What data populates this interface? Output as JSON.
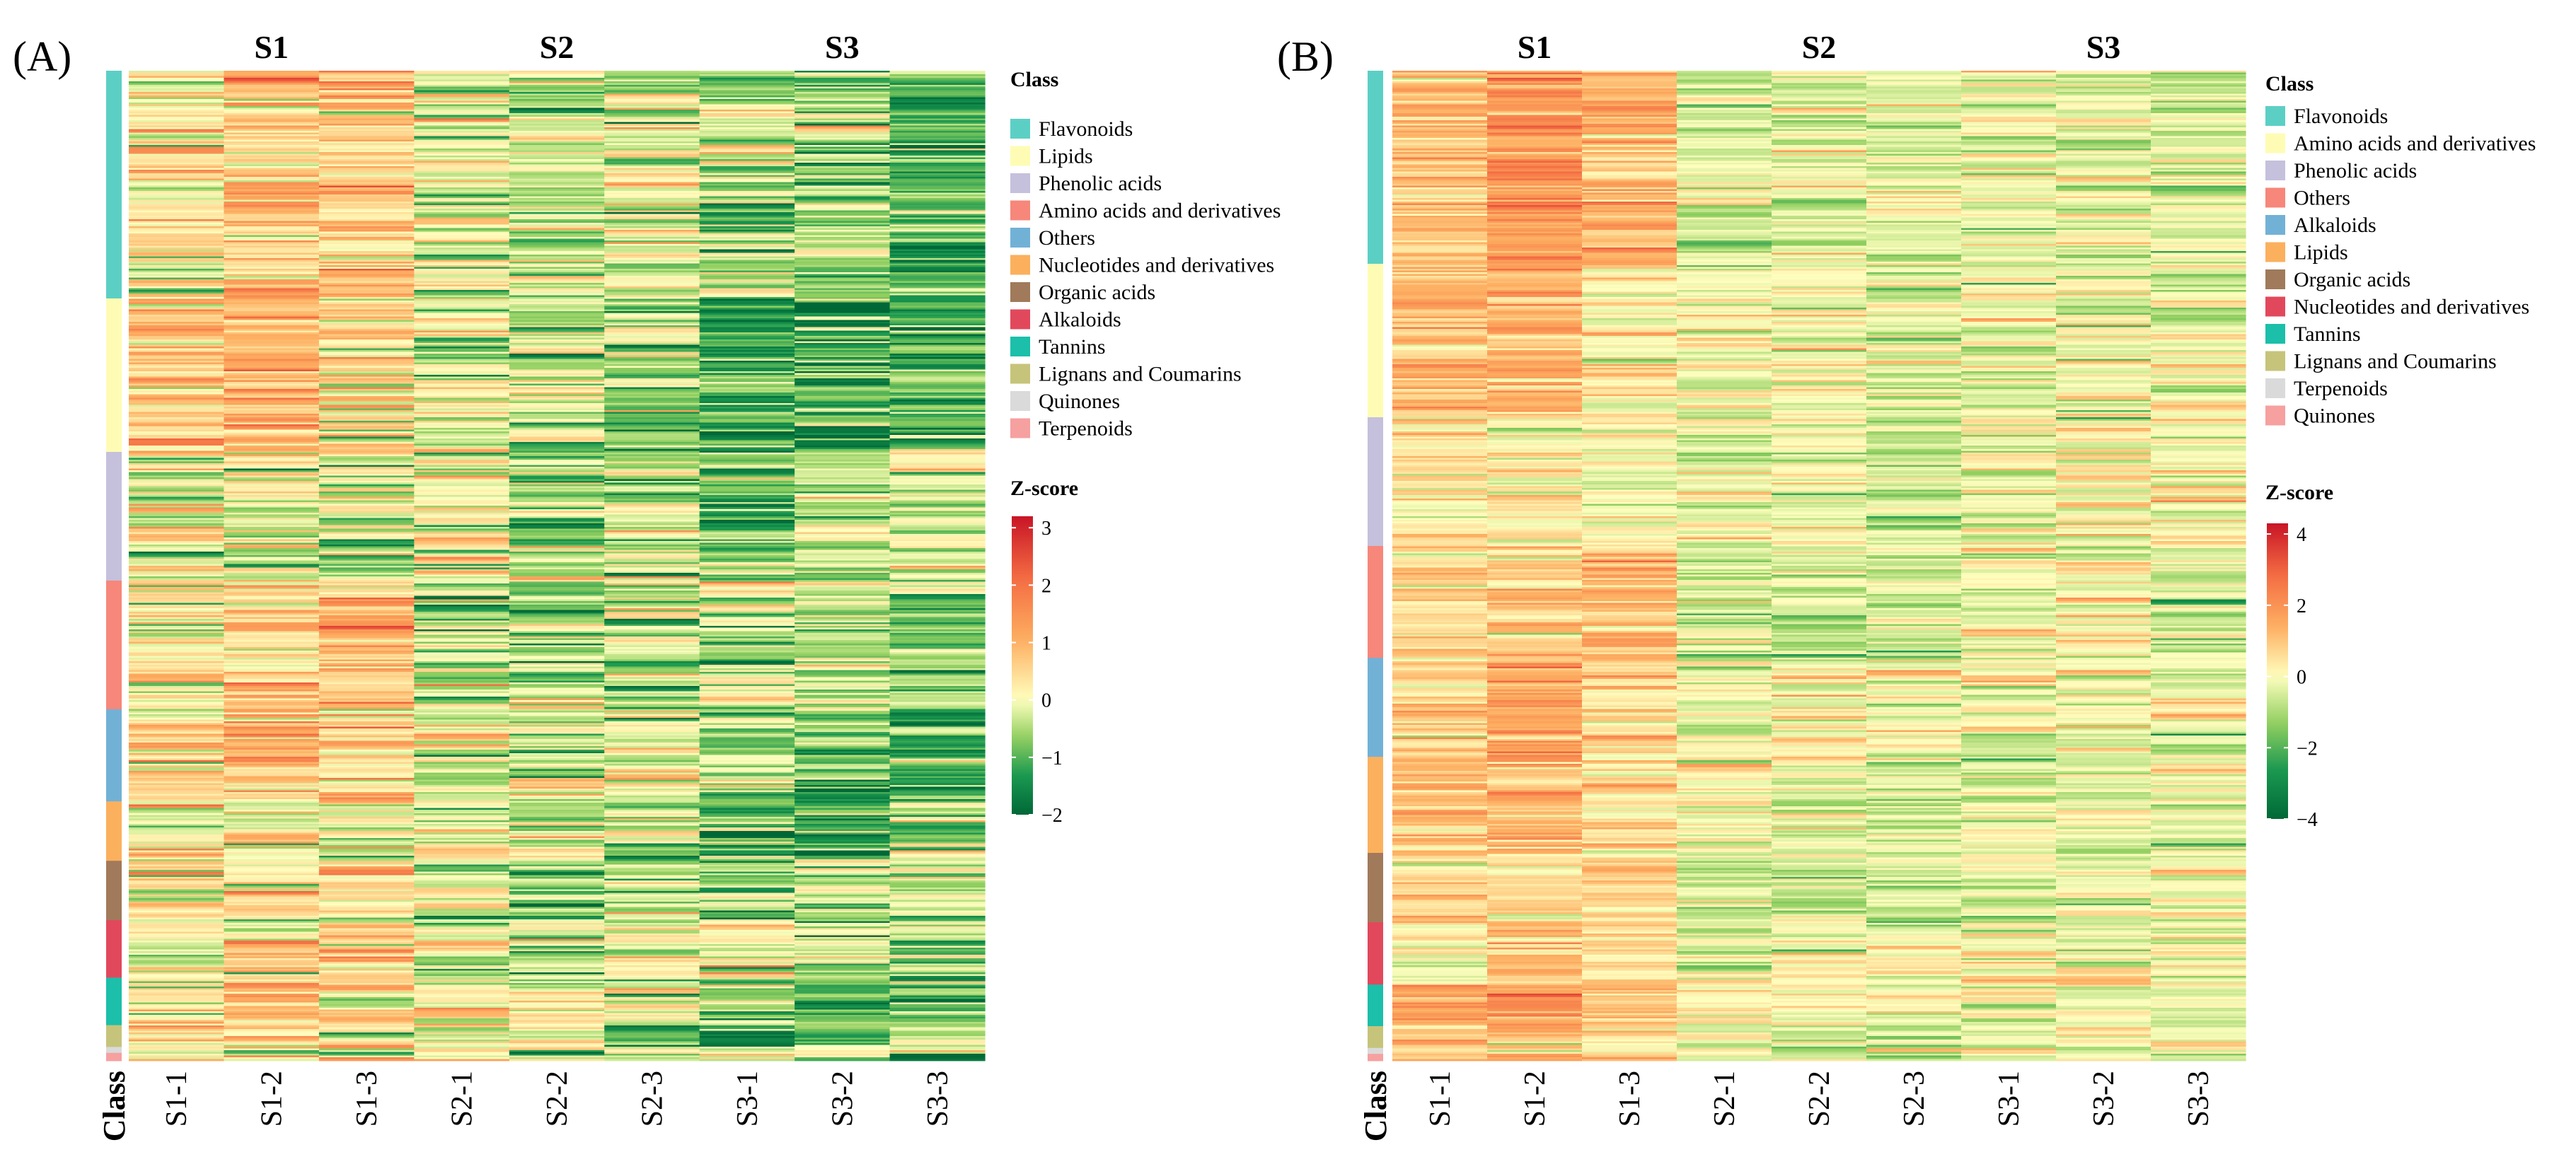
{
  "chart_data": [
    {
      "type": "heatmap",
      "panel_label": "(A)",
      "groups": [
        "S1",
        "S2",
        "S3"
      ],
      "columns": [
        "S1-1",
        "S1-2",
        "S1-3",
        "S2-1",
        "S2-2",
        "S2-3",
        "S3-1",
        "S3-2",
        "S3-3"
      ],
      "class_axis_label": "Class",
      "legend_title": "Class",
      "classes": [
        {
          "name": "Flavonoids",
          "color": "#5ccfc5",
          "share": 0.23
        },
        {
          "name": "Lipids",
          "color": "#fefcb4",
          "share": 0.155
        },
        {
          "name": "Phenolic acids",
          "color": "#c5c0dc",
          "share": 0.13
        },
        {
          "name": "Amino acids and derivatives",
          "color": "#f6877a",
          "share": 0.13
        },
        {
          "name": "Others",
          "color": "#72b1d6",
          "share": 0.093
        },
        {
          "name": "Nucleotides and derivatives",
          "color": "#fbb05e",
          "share": 0.06
        },
        {
          "name": "Organic acids",
          "color": "#a07a5a",
          "share": 0.06
        },
        {
          "name": "Alkaloids",
          "color": "#e2485c",
          "share": 0.058
        },
        {
          "name": "Tannins",
          "color": "#1bbfaa",
          "share": 0.048
        },
        {
          "name": "Lignans and Coumarins",
          "color": "#c6c47a",
          "share": 0.022
        },
        {
          "name": "Quinones",
          "color": "#dadada",
          "share": 0.006
        },
        {
          "name": "Terpenoids",
          "color": "#f6a0a0",
          "share": 0.008
        }
      ],
      "zscore": {
        "title": "Z-score",
        "min": -2,
        "max": 3.2,
        "ticks": [
          3,
          2,
          1,
          0,
          -1,
          -2
        ],
        "tick_labels": [
          "3",
          "2",
          "1",
          "0",
          "−1",
          "−2"
        ]
      },
      "column_mean_zscore": [
        0.4,
        0.7,
        0.5,
        -0.2,
        -0.45,
        -0.5,
        -0.9,
        -0.85,
        -0.8
      ]
    },
    {
      "type": "heatmap",
      "panel_label": "(B)",
      "groups": [
        "S1",
        "S2",
        "S3"
      ],
      "columns": [
        "S1-1",
        "S1-2",
        "S1-3",
        "S2-1",
        "S2-2",
        "S2-3",
        "S3-1",
        "S3-2",
        "S3-3"
      ],
      "class_axis_label": "Class",
      "legend_title": "Class",
      "classes": [
        {
          "name": "Flavonoids",
          "color": "#5ccfc5",
          "share": 0.195
        },
        {
          "name": "Amino acids and derivatives",
          "color": "#fefcb4",
          "share": 0.155
        },
        {
          "name": "Phenolic acids",
          "color": "#c5c0dc",
          "share": 0.13
        },
        {
          "name": "Others",
          "color": "#f6877a",
          "share": 0.113
        },
        {
          "name": "Alkaloids",
          "color": "#72b1d6",
          "share": 0.1
        },
        {
          "name": "Lipids",
          "color": "#fbb05e",
          "share": 0.097
        },
        {
          "name": "Organic acids",
          "color": "#a07a5a",
          "share": 0.07
        },
        {
          "name": "Nucleotides and derivatives",
          "color": "#e2485c",
          "share": 0.063
        },
        {
          "name": "Tannins",
          "color": "#1bbfaa",
          "share": 0.042
        },
        {
          "name": "Lignans and Coumarins",
          "color": "#c6c47a",
          "share": 0.022
        },
        {
          "name": "Terpenoids",
          "color": "#dadada",
          "share": 0.006
        },
        {
          "name": "Quinones",
          "color": "#f6a0a0",
          "share": 0.007
        }
      ],
      "zscore": {
        "title": "Z-score",
        "min": -4,
        "max": 4.3,
        "ticks": [
          4,
          2,
          0,
          -2,
          -4
        ],
        "tick_labels": [
          "4",
          "2",
          "0",
          "−2",
          "−4"
        ]
      },
      "column_mean_zscore": [
        1.0,
        1.6,
        0.8,
        -0.4,
        -0.3,
        -0.5,
        -0.1,
        -0.2,
        -0.3
      ]
    }
  ]
}
